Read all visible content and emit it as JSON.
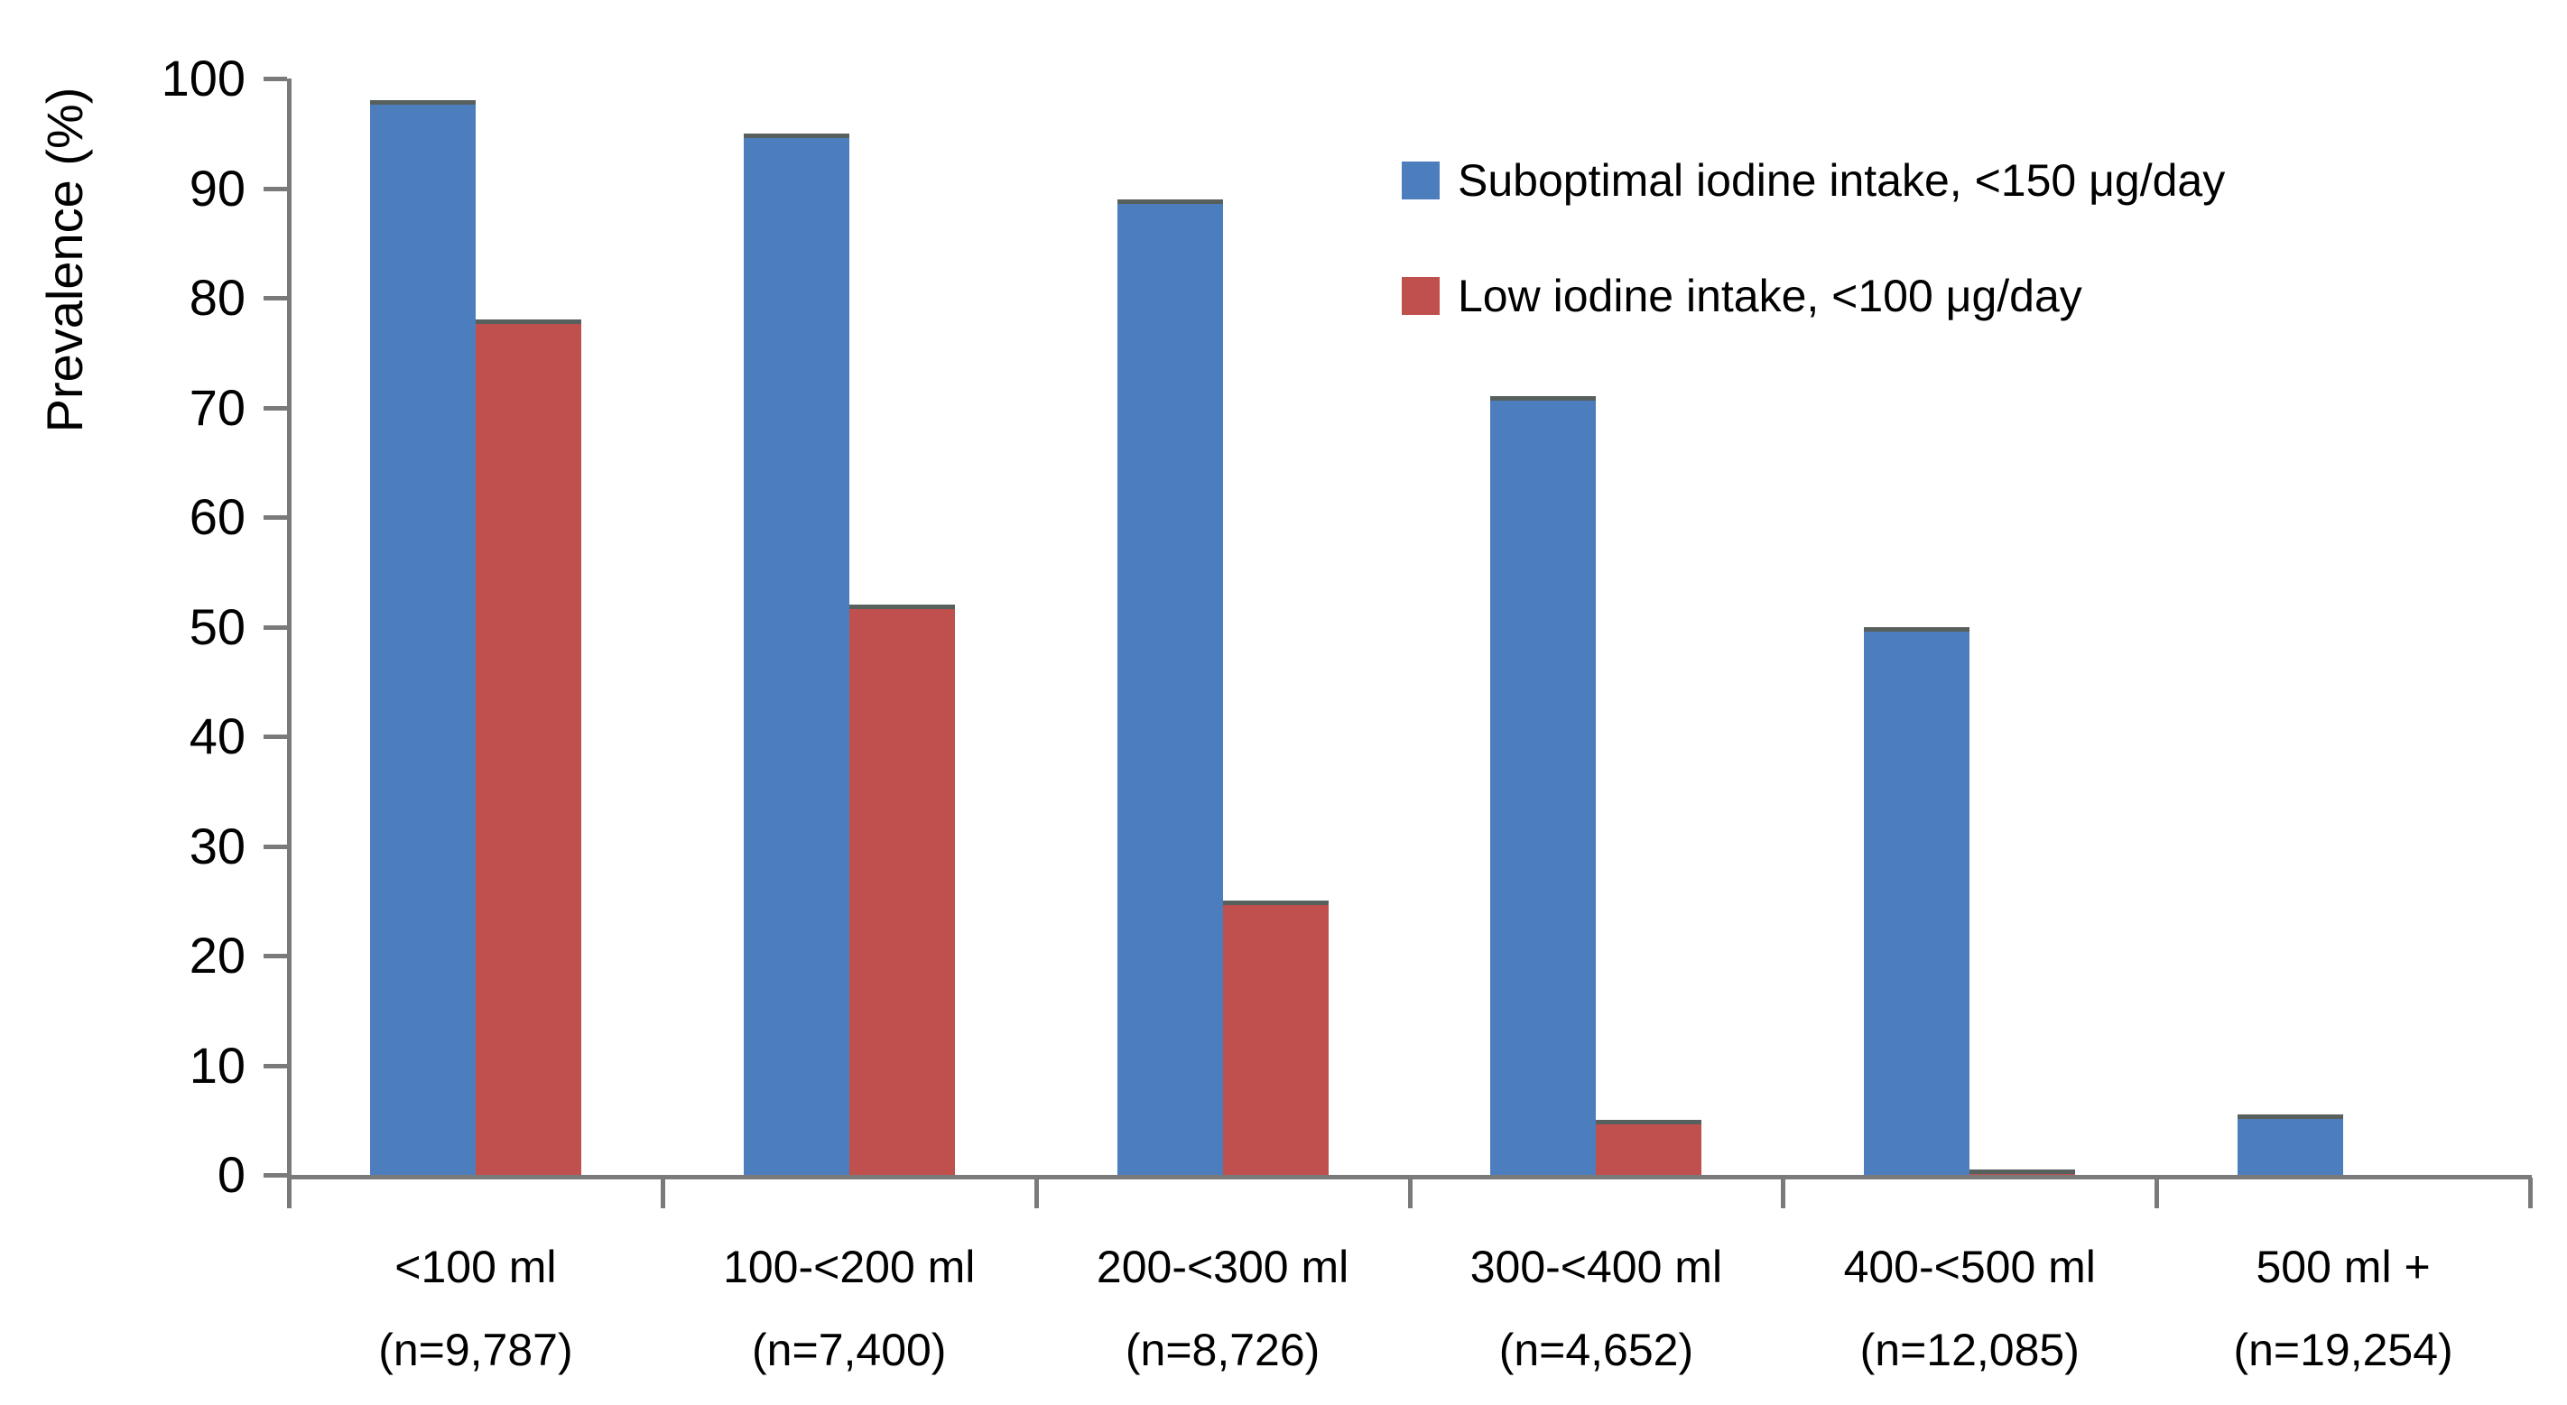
{
  "chart_data": {
    "type": "bar",
    "title": "",
    "y_axis": {
      "label": "Prevalence (%)",
      "min": 0,
      "max": 100,
      "tick_step": 10,
      "ticks": [
        0,
        10,
        20,
        30,
        40,
        50,
        60,
        70,
        80,
        90,
        100
      ]
    },
    "categories": [
      {
        "label": "<100 ml",
        "n": "(n=9,787)"
      },
      {
        "label": "100-<200 ml",
        "n": "(n=7,400)"
      },
      {
        "label": "200-<300 ml",
        "n": "(n=8,726)"
      },
      {
        "label": "300-<400 ml",
        "n": "(n=4,652)"
      },
      {
        "label": "400-<500 ml",
        "n": "(n=12,085)"
      },
      {
        "label": "500 ml +",
        "n": "(n=19,254)"
      }
    ],
    "series": [
      {
        "name": "Suboptimal iodine intake, <150 μg/day",
        "color": "#4C7EBD",
        "values": [
          98,
          95,
          89,
          71,
          50,
          5.5
        ]
      },
      {
        "name": "Low iodine intake, <100 μg/day",
        "color": "#C0504D",
        "values": [
          78,
          52,
          25,
          5,
          0.5,
          0
        ]
      }
    ],
    "legend_position": "top-right",
    "grid": "off"
  },
  "colors": {
    "axis": "#7a7a7a",
    "bar_edge": "#57605c",
    "text": "#000000"
  }
}
